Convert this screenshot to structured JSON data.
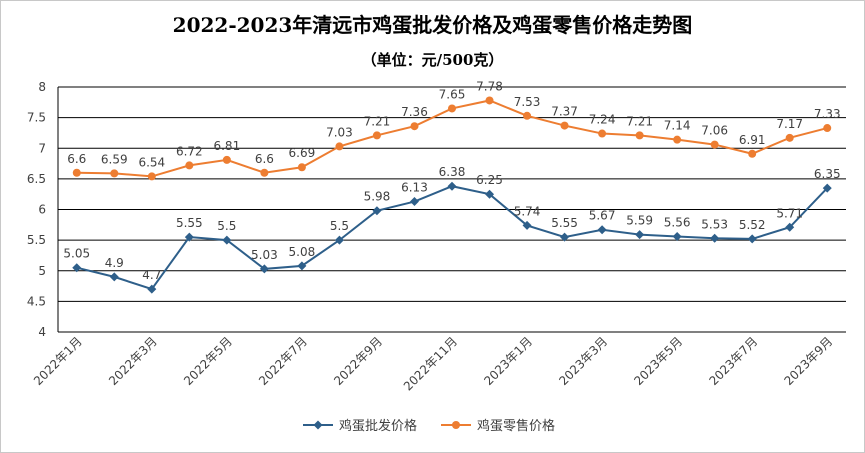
{
  "chart_data": {
    "type": "line",
    "title": "2022-2023年清远市鸡蛋批发价格及鸡蛋零售价格走势图",
    "subtitle": "（单位：元/500克）",
    "xlabel": "",
    "ylabel": "",
    "ylim": [
      4,
      8
    ],
    "yticks": [
      "4",
      "4.5",
      "5",
      "5.5",
      "6",
      "6.5",
      "7",
      "7.5",
      "8"
    ],
    "grid": true,
    "legend_position": "bottom",
    "x_tick_labels": [
      "2022年1月",
      "2022年3月",
      "2022年5月",
      "2022年7月",
      "2022年9月",
      "2022年11月",
      "2023年1月",
      "2023年3月",
      "2023年5月",
      "2023年7月",
      "2023年9月"
    ],
    "series": [
      {
        "name": "鸡蛋批发价格",
        "color": "#2e5f8a",
        "marker": "diamond",
        "values": [
          5.05,
          4.9,
          4.7,
          5.55,
          5.5,
          5.03,
          5.08,
          5.5,
          5.98,
          6.13,
          6.38,
          6.25,
          5.74,
          5.55,
          5.67,
          5.59,
          5.56,
          5.53,
          5.52,
          5.71,
          6.35
        ],
        "labels": [
          "5.05",
          "4.9",
          "4.7",
          "5.55",
          "5.5",
          "5.03",
          "5.08",
          "5.5",
          "5.98",
          "6.13",
          "6.38",
          "6.25",
          "5.74",
          "5.55",
          "5.67",
          "5.59",
          "5.56",
          "5.53",
          "5.52",
          "5.71",
          "6.35"
        ]
      },
      {
        "name": "鸡蛋零售价格",
        "color": "#ed7d31",
        "marker": "circle",
        "values": [
          6.6,
          6.59,
          6.54,
          6.72,
          6.81,
          6.6,
          6.69,
          7.03,
          7.21,
          7.36,
          7.65,
          7.78,
          7.53,
          7.37,
          7.24,
          7.21,
          7.14,
          7.06,
          6.91,
          7.17,
          7.33
        ],
        "labels": [
          "6.6",
          "6.59",
          "6.54",
          "6.72",
          "6.81",
          "6.6",
          "6.69",
          "7.03",
          "7.21",
          "7.36",
          "7.65",
          "7.78",
          "7.53",
          "7.37",
          "7.24",
          "7.21",
          "7.14",
          "7.06",
          "6.91",
          "7.17",
          "7.33"
        ]
      }
    ]
  }
}
